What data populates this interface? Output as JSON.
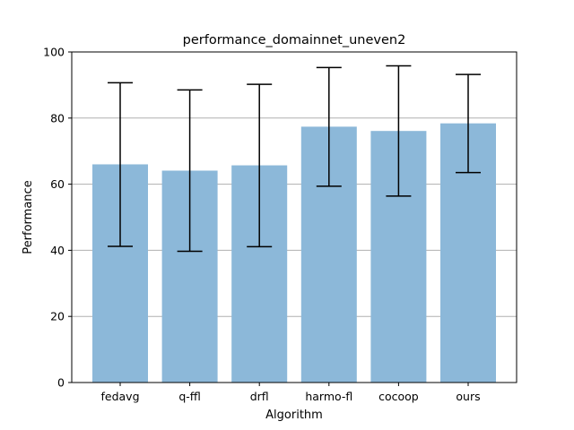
{
  "chart_data": {
    "type": "bar",
    "title": "performance_domainnet_uneven2",
    "xlabel": "Algorithm",
    "ylabel": "Performance",
    "categories": [
      "fedavg",
      "q-ffl",
      "drfl",
      "harmo-fl",
      "cocoop",
      "ours"
    ],
    "values": [
      66,
      64.1,
      65.7,
      77.4,
      76.1,
      78.4
    ],
    "error_low": [
      41.2,
      39.7,
      41.1,
      59.4,
      56.4,
      63.5
    ],
    "error_high": [
      90.7,
      88.5,
      90.2,
      95.3,
      95.8,
      93.2
    ],
    "ylim": [
      0,
      100
    ],
    "yticks": [
      0,
      20,
      40,
      60,
      80,
      100
    ],
    "grid": "horizontal",
    "bar_color": "#8cb8d9",
    "error_color": "#000000",
    "grid_color": "#b0b0b0"
  }
}
